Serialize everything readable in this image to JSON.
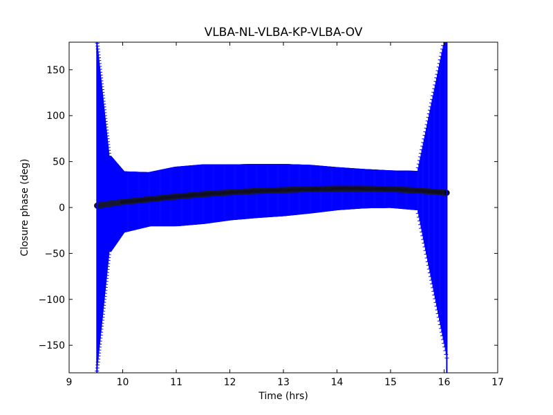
{
  "chart_data": {
    "type": "scatter",
    "title": "VLBA-NL-VLBA-KP-VLBA-OV",
    "xlabel": "Time (hrs)",
    "ylabel": "Closure phase (deg)",
    "xlim": [
      9,
      17
    ],
    "ylim": [
      -180,
      180
    ],
    "xticks": [
      9,
      10,
      11,
      12,
      13,
      14,
      15,
      16,
      17
    ],
    "xtick_labels": [
      "9",
      "10",
      "11",
      "12",
      "13",
      "14",
      "15",
      "16",
      "17"
    ],
    "yticks": [
      -150,
      -100,
      -50,
      0,
      50,
      100,
      150
    ],
    "ytick_labels": [
      "−150",
      "−100",
      "−50",
      "0",
      "50",
      "100",
      "150"
    ],
    "grid": false,
    "legend": "none",
    "series": [
      {
        "marker": "circle",
        "color": "#000000",
        "errorbar_color": "#0000ff",
        "x": [
          9.52,
          9.75,
          10.0,
          10.5,
          11.0,
          11.5,
          12.0,
          12.5,
          13.0,
          13.5,
          14.0,
          14.5,
          15.0,
          15.5,
          16.05
        ],
        "y": [
          2,
          4,
          6,
          9,
          12,
          14.5,
          16.5,
          18,
          19,
          20,
          20.5,
          20.5,
          20,
          18.5,
          16
        ],
        "yerr": [
          180,
          52,
          33,
          29,
          32,
          32,
          30,
          29,
          28,
          26,
          23,
          21,
          20,
          21,
          180
        ]
      }
    ],
    "vertical_lines": [
      9.52,
      16.05
    ]
  }
}
